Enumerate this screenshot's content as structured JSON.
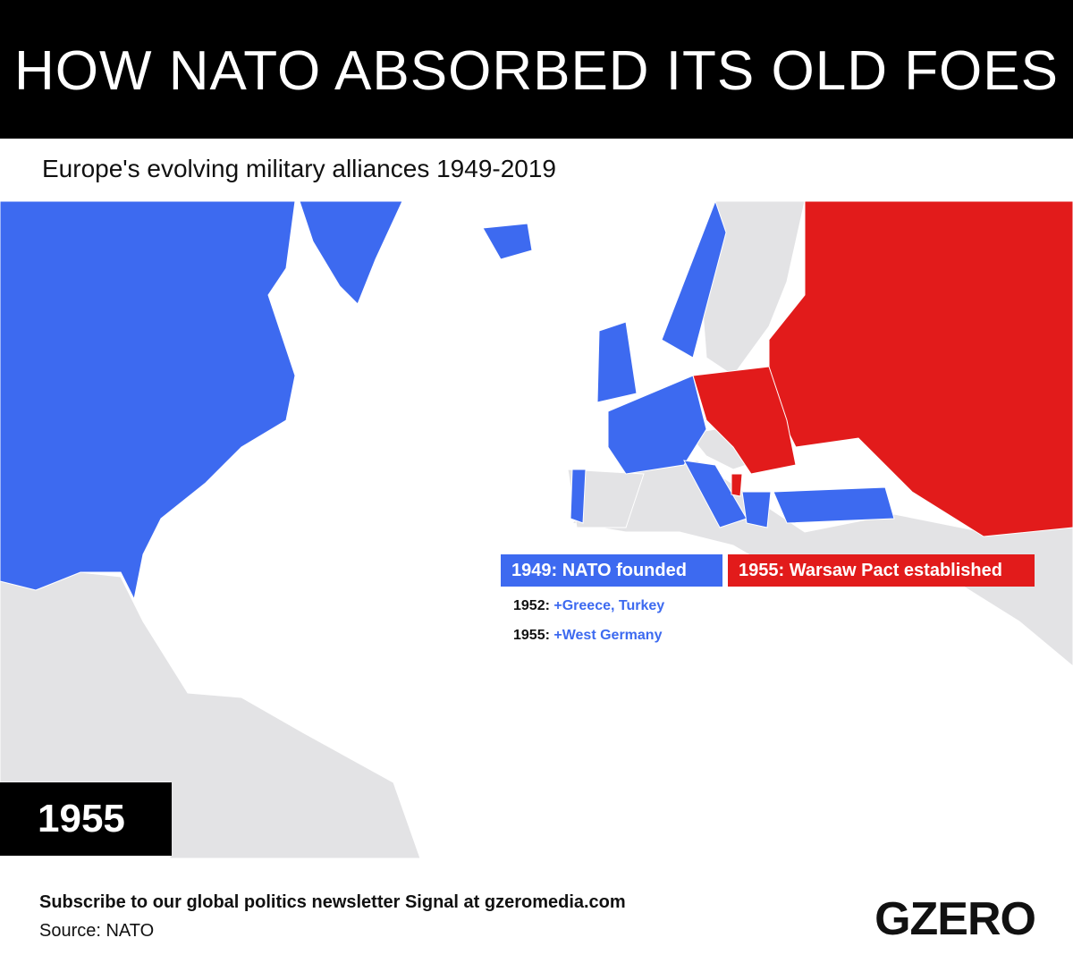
{
  "header": {
    "title": "HOW NATO ABSORBED ITS OLD FOES"
  },
  "subtitle": "Europe's evolving military alliances 1949-2019",
  "legend": {
    "nato": "1949: NATO founded",
    "warsaw": "1955: Warsaw Pact established"
  },
  "additions": [
    {
      "year": "1952:",
      "members": "+Greece, Turkey"
    },
    {
      "year": "1955:",
      "members": "+West Germany"
    }
  ],
  "year_label": "1955",
  "footer": {
    "subscribe": "Subscribe to our global politics newsletter Signal at gzeromedia.com",
    "source": "Source: NATO",
    "logo": "GZERO"
  }
}
